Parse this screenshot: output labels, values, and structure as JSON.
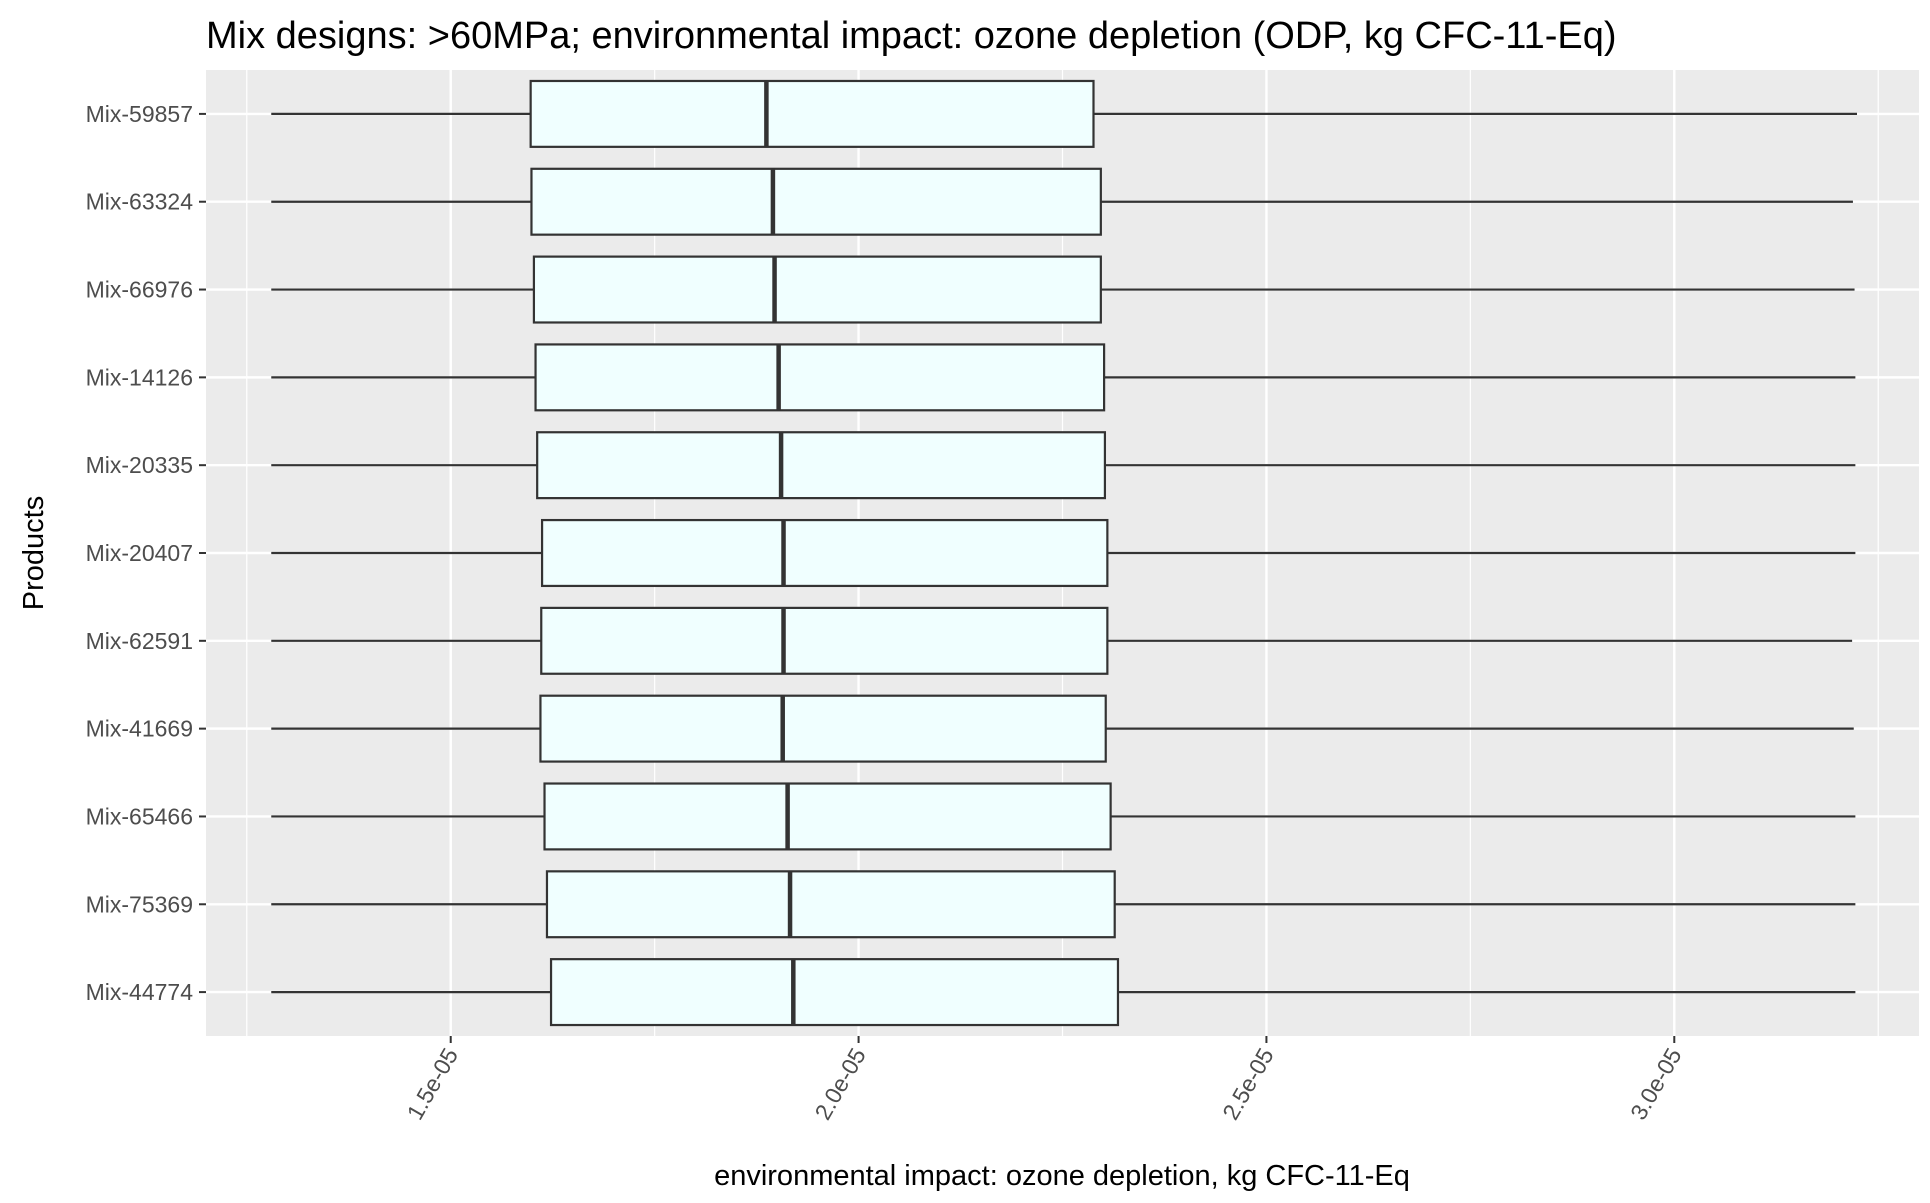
{
  "chart_data": {
    "type": "boxplot",
    "title": "Mix designs: >60MPa; environmental impact: ozone depletion (ODP, kg CFC-11-Eq)",
    "xlabel": "environmental impact: ozone depletion, kg CFC-11-Eq",
    "ylabel": "Products",
    "xlim": [
      1.2e-05,
      3.3e-05
    ],
    "x_ticks": [
      1.5e-05,
      2e-05,
      2.5e-05,
      3e-05
    ],
    "x_tick_labels": [
      "1.5e-05",
      "2.0e-05",
      "2.5e-05",
      "3.0e-05"
    ],
    "grid": true,
    "box_fill": "#F0FFFF",
    "box_stroke": "#333333",
    "panel_background": "#EBEBEB",
    "categories": [
      "Mix-59857",
      "Mix-63324",
      "Mix-66976",
      "Mix-14126",
      "Mix-20335",
      "Mix-20407",
      "Mix-62591",
      "Mix-41669",
      "Mix-65466",
      "Mix-75369",
      "Mix-44774"
    ],
    "boxes": [
      {
        "label": "Mix-59857",
        "min": 1.28e-05,
        "q1": 1.598e-05,
        "median": 1.887e-05,
        "q3": 2.288e-05,
        "max": 3.224e-05
      },
      {
        "label": "Mix-63324",
        "min": 1.28e-05,
        "q1": 1.599e-05,
        "median": 1.895e-05,
        "q3": 2.297e-05,
        "max": 3.219e-05
      },
      {
        "label": "Mix-66976",
        "min": 1.28e-05,
        "q1": 1.602e-05,
        "median": 1.897e-05,
        "q3": 2.297e-05,
        "max": 3.221e-05
      },
      {
        "label": "Mix-14126",
        "min": 1.28e-05,
        "q1": 1.604e-05,
        "median": 1.902e-05,
        "q3": 2.301e-05,
        "max": 3.222e-05
      },
      {
        "label": "Mix-20335",
        "min": 1.28e-05,
        "q1": 1.606e-05,
        "median": 1.905e-05,
        "q3": 2.302e-05,
        "max": 3.222e-05
      },
      {
        "label": "Mix-20407",
        "min": 1.28e-05,
        "q1": 1.612e-05,
        "median": 1.908e-05,
        "q3": 2.305e-05,
        "max": 3.222e-05
      },
      {
        "label": "Mix-62591",
        "min": 1.28e-05,
        "q1": 1.611e-05,
        "median": 1.908e-05,
        "q3": 2.305e-05,
        "max": 3.218e-05
      },
      {
        "label": "Mix-41669",
        "min": 1.28e-05,
        "q1": 1.61e-05,
        "median": 1.907e-05,
        "q3": 2.303e-05,
        "max": 3.22e-05
      },
      {
        "label": "Mix-65466",
        "min": 1.28e-05,
        "q1": 1.615e-05,
        "median": 1.913e-05,
        "q3": 2.309e-05,
        "max": 3.222e-05
      },
      {
        "label": "Mix-75369",
        "min": 1.28e-05,
        "q1": 1.618e-05,
        "median": 1.916e-05,
        "q3": 2.314e-05,
        "max": 3.222e-05
      },
      {
        "label": "Mix-44774",
        "min": 1.28e-05,
        "q1": 1.623e-05,
        "median": 1.92e-05,
        "q3": 2.318e-05,
        "max": 3.222e-05
      }
    ]
  }
}
